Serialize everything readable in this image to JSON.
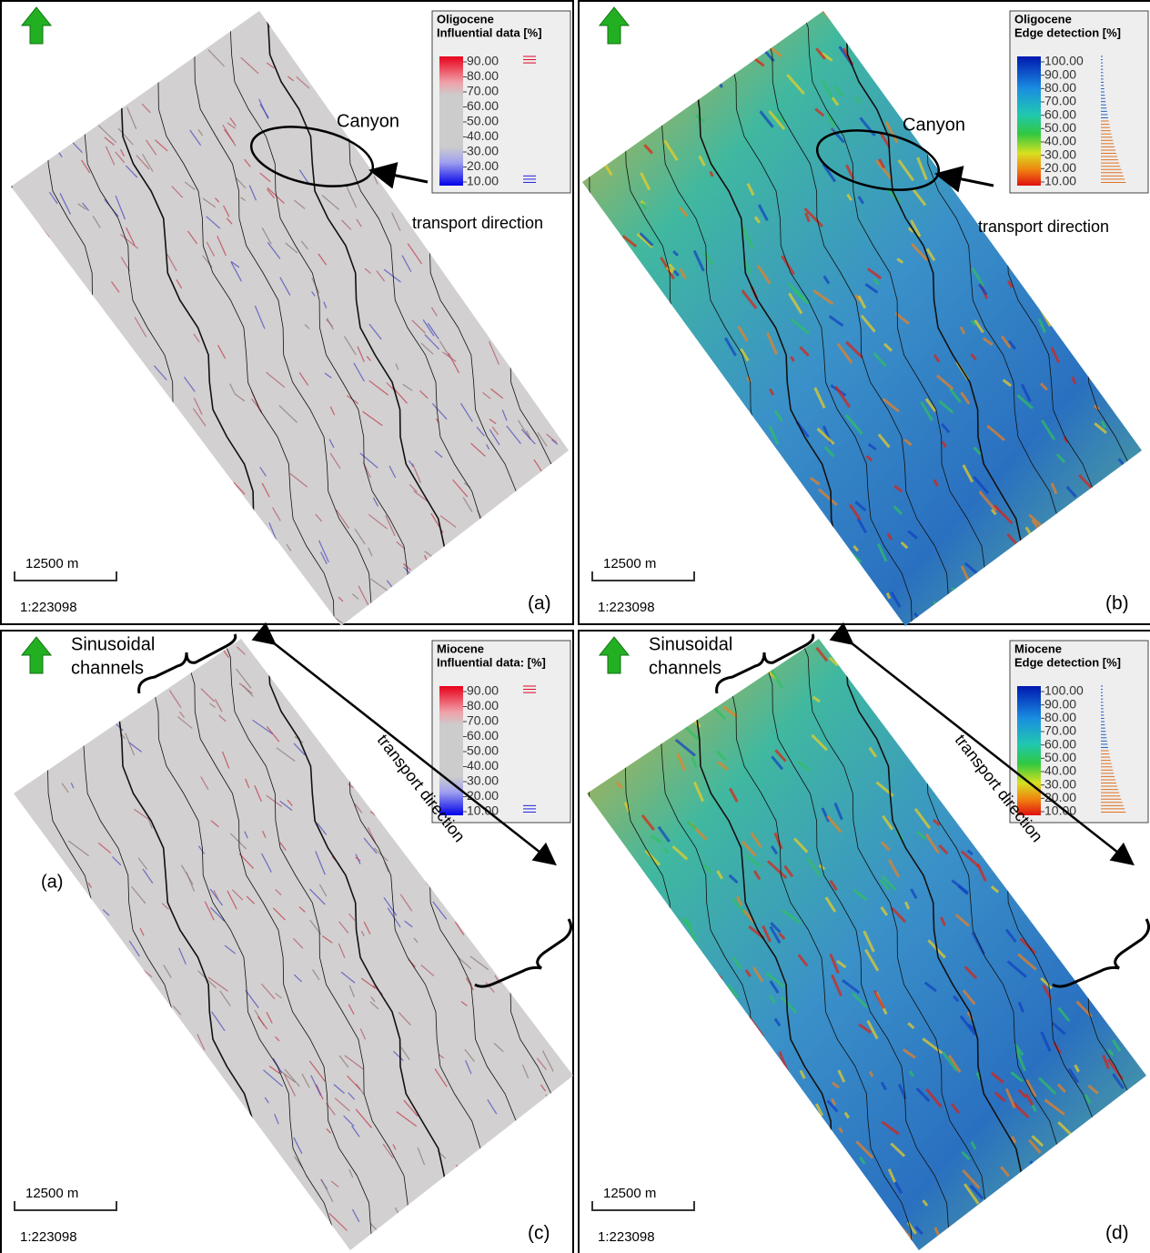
{
  "panels": [
    {
      "label": "(a)",
      "legend": {
        "title": [
          "Oligocene",
          "Influential data [%]"
        ],
        "ticks": [
          "90.00",
          "80.00",
          "70.00",
          "60.00",
          "50.00",
          "40.00",
          "30.00",
          "20.00",
          "10.00"
        ]
      },
      "annotations": {
        "feature": "Canyon",
        "transport": "transport direction"
      },
      "scale": {
        "length": "12500 m",
        "ratio": "1:223098"
      }
    },
    {
      "label": "(b)",
      "legend": {
        "title": [
          "Oligocene",
          "Edge detection [%]"
        ],
        "ticks": [
          "100.00",
          "90.00",
          "80.00",
          "70.00",
          "60.00",
          "50.00",
          "40.00",
          "30.00",
          "20.00",
          "10.00"
        ]
      },
      "annotations": {
        "feature": "Canyon",
        "transport": "transport direction"
      },
      "scale": {
        "length": "12500 m",
        "ratio": "1:223098"
      }
    },
    {
      "label": "(c)",
      "legend": {
        "title": [
          "Miocene",
          "Influential data: [%]"
        ],
        "ticks": [
          "90.00",
          "80.00",
          "70.00",
          "60.00",
          "50.00",
          "40.00",
          "30.00",
          "20.00",
          "10.00"
        ]
      },
      "annotations": {
        "feature": [
          "Sinusoidal",
          "channels"
        ],
        "transport": "transport direction",
        "side_label": "(a)"
      },
      "scale": {
        "length": "12500 m",
        "ratio": "1:223098"
      }
    },
    {
      "label": "(d)",
      "legend": {
        "title": [
          "Miocene",
          "Edge detection [%]"
        ],
        "ticks": [
          "100.00",
          "90.00",
          "80.00",
          "70.00",
          "60.00",
          "50.00",
          "40.00",
          "30.00",
          "20.00",
          "10.00"
        ]
      },
      "annotations": {
        "feature": [
          "Sinusoidal",
          "channels"
        ],
        "transport": "transport direction"
      },
      "scale": {
        "length": "12500 m",
        "ratio": "1:223098"
      }
    }
  ]
}
